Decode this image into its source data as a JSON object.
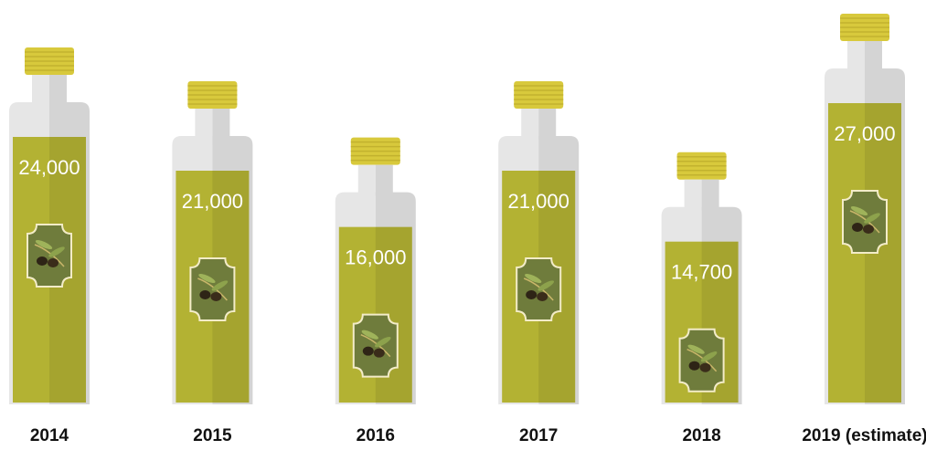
{
  "chart_data": {
    "type": "bottle",
    "categories": [
      "2014",
      "2015",
      "2016",
      "2017",
      "2018",
      "2019 (estimate)"
    ],
    "values": [
      24000,
      21000,
      16000,
      21000,
      14700,
      27000
    ],
    "value_labels": [
      "24,000",
      "21,000",
      "16,000",
      "21,000",
      "14,700",
      "27,000"
    ],
    "color": "#b3b233"
  }
}
